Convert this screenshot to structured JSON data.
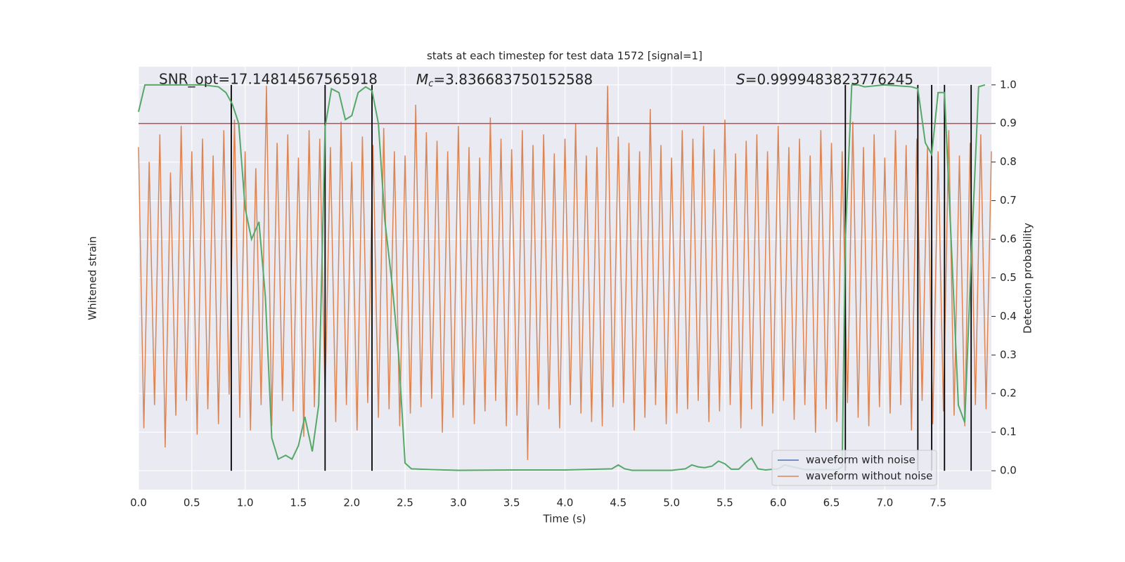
{
  "chart_data": {
    "type": "line",
    "title": "stats at each timestep for test data 1572 [signal=1]",
    "xlabel": "Time (s)",
    "ylabel": "Whitened strain",
    "y2label": "Detection probability",
    "annotations": {
      "snr": "SNR_opt=17.14814567565918",
      "mc": {
        "symbol": "M",
        "sub": "c",
        "text": "=3.836683750152588"
      },
      "s": {
        "symbol": "S",
        "text": "=0.9999483823776245"
      }
    },
    "xlim": [
      0,
      8
    ],
    "xticks": [
      {
        "value": 0,
        "label": "0.0"
      },
      0.5,
      {
        "value": 1,
        "label": "1.0"
      },
      1.5,
      {
        "value": 2,
        "label": "2.0"
      },
      2.5,
      {
        "value": 3,
        "label": "3.0"
      },
      3.5,
      {
        "value": 4,
        "label": "4.0"
      },
      4.5,
      {
        "value": 5,
        "label": "5.0"
      },
      5.5,
      {
        "value": 6,
        "label": "6.0"
      },
      6.5,
      {
        "value": 7,
        "label": "7.0"
      },
      7.5
    ],
    "ylim": [
      -1,
      1
    ],
    "y2lim": [
      -0.049,
      1.047
    ],
    "y2ticks": [
      {
        "value": 0,
        "label": "0.0"
      },
      0.1,
      0.2,
      0.3,
      0.4,
      0.5,
      0.6,
      0.7,
      0.8,
      0.9,
      {
        "value": 1,
        "label": "1.0"
      }
    ],
    "grid": true,
    "legend": "lower right",
    "series": [
      {
        "name": "waveform with noise",
        "color": "#4c72b0"
      },
      {
        "name": "waveform without noise",
        "color": "#dd8452",
        "x": [
          0,
          0.05,
          0.1,
          0.15,
          0.2,
          0.25,
          0.3,
          0.35,
          0.4,
          0.45,
          0.5,
          0.55,
          0.6,
          0.65,
          0.7,
          0.75,
          0.8,
          0.85,
          0.9,
          0.95,
          1,
          1.05,
          1.1,
          1.15,
          1.2,
          1.25,
          1.3,
          1.35,
          1.4,
          1.45,
          1.5,
          1.55,
          1.6,
          1.65,
          1.7,
          1.75,
          1.8,
          1.85,
          1.9,
          1.95,
          2,
          2.05,
          2.1,
          2.15,
          2.2,
          2.25,
          2.3,
          2.35,
          2.4,
          2.45,
          2.5,
          2.55,
          2.6,
          2.65,
          2.7,
          2.75,
          2.8,
          2.85,
          2.9,
          2.95,
          3,
          3.05,
          3.1,
          3.15,
          3.2,
          3.25,
          3.3,
          3.35,
          3.4,
          3.45,
          3.5,
          3.55,
          3.6,
          3.65,
          3.7,
          3.75,
          3.8,
          3.85,
          3.9,
          3.95,
          4,
          4.05,
          4.1,
          4.15,
          4.2,
          4.25,
          4.3,
          4.35,
          4.4,
          4.45,
          4.5,
          4.55,
          4.6,
          4.65,
          4.7,
          4.75,
          4.8,
          4.85,
          4.9,
          4.95,
          5,
          5.05,
          5.1,
          5.15,
          5.2,
          5.25,
          5.3,
          5.35,
          5.4,
          5.45,
          5.5,
          5.55,
          5.6,
          5.65,
          5.7,
          5.75,
          5.8,
          5.85,
          5.9,
          5.95,
          6,
          6.05,
          6.1,
          6.15,
          6.2,
          6.25,
          6.3,
          6.35,
          6.4,
          6.45,
          6.5,
          6.55,
          6.6,
          6.65,
          6.7,
          6.75,
          6.8,
          6.85,
          6.9,
          6.95,
          7,
          7.05,
          7.1,
          7.15,
          7.2,
          7.25,
          7.3,
          7.35,
          7.4,
          7.45,
          7.5,
          7.55,
          7.6,
          7.65,
          7.7,
          7.75,
          7.8,
          7.85,
          7.9,
          7.95,
          8
        ],
        "values": [
          0.62,
          -0.71,
          0.55,
          -0.6,
          0.68,
          -0.8,
          0.5,
          -0.65,
          0.72,
          -0.58,
          0.6,
          -0.74,
          0.66,
          -0.62,
          0.58,
          -0.69,
          0.7,
          -0.55,
          0.75,
          -0.66,
          0.6,
          -0.72,
          0.52,
          -0.6,
          0.91,
          -0.7,
          0.64,
          -0.58,
          0.68,
          -0.63,
          0.57,
          -0.75,
          0.7,
          -0.61,
          0.66,
          -0.57,
          0.62,
          -0.68,
          0.74,
          -0.6,
          0.55,
          -0.72,
          0.67,
          -0.59,
          0.63,
          -0.66,
          0.71,
          -0.62,
          0.6,
          -0.7,
          0.58,
          -0.64,
          0.82,
          -0.61,
          0.69,
          -0.57,
          0.65,
          -0.73,
          0.6,
          -0.66,
          0.72,
          -0.6,
          0.62,
          -0.69,
          0.57,
          -0.63,
          0.76,
          -0.58,
          0.66,
          -0.7,
          0.61,
          -0.65,
          0.7,
          -0.86,
          0.63,
          -0.6,
          0.68,
          -0.62,
          0.59,
          -0.71,
          0.66,
          -0.6,
          0.73,
          -0.64,
          0.58,
          -0.68,
          0.62,
          -0.7,
          0.91,
          -0.61,
          0.67,
          -0.59,
          0.64,
          -0.72,
          0.6,
          -0.66,
          0.8,
          -0.6,
          0.63,
          -0.69,
          0.57,
          -0.64,
          0.7,
          -0.62,
          0.66,
          -0.58,
          0.72,
          -0.68,
          0.61,
          -0.63,
          0.75,
          -0.6,
          0.59,
          -0.71,
          0.65,
          -0.62,
          0.68,
          -0.7,
          0.6,
          -0.64,
          0.72,
          -0.58,
          0.62,
          -0.67,
          0.66,
          -0.6,
          0.58,
          -0.73,
          0.7,
          -0.62,
          0.64,
          -0.68,
          0.6,
          -0.59,
          0.74,
          -0.66,
          0.62,
          -0.7,
          0.68,
          -0.61,
          0.57,
          -0.64,
          0.7,
          -0.6,
          0.63,
          -0.72,
          0.66,
          -0.58,
          0.62,
          -0.69,
          0.6,
          -0.63,
          0.7,
          -0.65,
          0.58,
          -0.7,
          0.64,
          -0.6,
          0.68,
          -0.62,
          0.6
        ]
      }
    ],
    "probability": {
      "color": "#55a868",
      "axis": "y2",
      "x": [
        0,
        0.06,
        0.2,
        0.4,
        0.6,
        0.75,
        0.82,
        0.88,
        0.94,
        1,
        1.06,
        1.13,
        1.19,
        1.25,
        1.31,
        1.38,
        1.44,
        1.5,
        1.56,
        1.63,
        1.69,
        1.75,
        1.81,
        1.88,
        1.94,
        2,
        2.06,
        2.13,
        2.19,
        2.25,
        2.31,
        2.38,
        2.44,
        2.5,
        2.56,
        2.75,
        3,
        3.5,
        4,
        4.44,
        4.5,
        4.56,
        4.63,
        5,
        5.13,
        5.19,
        5.25,
        5.31,
        5.38,
        5.44,
        5.5,
        5.56,
        5.63,
        5.69,
        5.75,
        5.81,
        5.88,
        6,
        6.06,
        6.25,
        6.56,
        6.6,
        6.63,
        6.69,
        6.75,
        6.81,
        7,
        7.25,
        7.31,
        7.38,
        7.44,
        7.5,
        7.56,
        7.63,
        7.69,
        7.75,
        7.81,
        7.88,
        7.94
      ],
      "values": [
        0.93,
        1,
        1,
        1,
        1,
        0.995,
        0.98,
        0.95,
        0.9,
        0.68,
        0.6,
        0.645,
        0.45,
        0.085,
        0.03,
        0.04,
        0.03,
        0.065,
        0.14,
        0.05,
        0.17,
        0.89,
        0.99,
        0.98,
        0.91,
        0.92,
        0.98,
        0.995,
        0.985,
        0.9,
        0.65,
        0.48,
        0.3,
        0.02,
        0.005,
        0.003,
        0.001,
        0.002,
        0.002,
        0.005,
        0.015,
        0.005,
        0.001,
        0.001,
        0.005,
        0.015,
        0.01,
        0.008,
        0.012,
        0.025,
        0.018,
        0.004,
        0.004,
        0.02,
        0.033,
        0.005,
        0.002,
        0.005,
        0.015,
        0.003,
        0.003,
        0.01,
        0.6,
        1,
        1,
        0.995,
        1,
        0.995,
        0.99,
        0.85,
        0.82,
        0.98,
        0.98,
        0.55,
        0.17,
        0.125,
        0.55,
        0.995,
        1
      ]
    },
    "threshold": {
      "value": 0.9,
      "color": "#c44e52"
    },
    "vlines": [
      0.87,
      1.75,
      2.19,
      6.63,
      7.31,
      7.44,
      7.56,
      7.81
    ]
  }
}
